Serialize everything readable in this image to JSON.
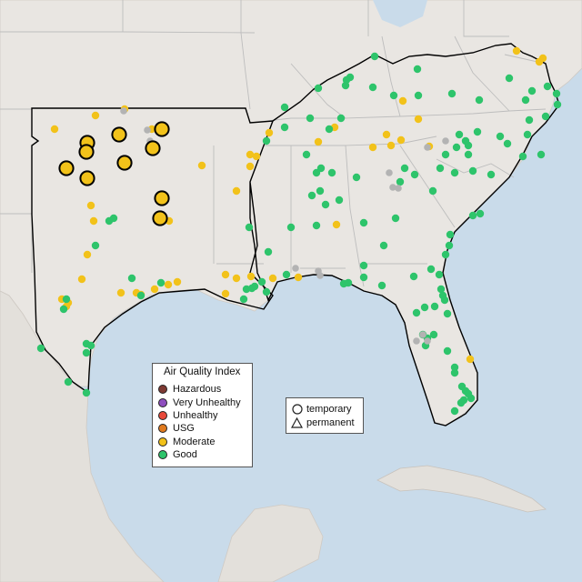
{
  "legend": {
    "title": "Air Quality Index",
    "items": [
      {
        "label": "Hazardous",
        "color": "#7e3a33"
      },
      {
        "label": "Very Unhealthy",
        "color": "#8f4fbf"
      },
      {
        "label": "Unhealthy",
        "color": "#e8493a"
      },
      {
        "label": "USG",
        "color": "#e07a1f"
      },
      {
        "label": "Moderate",
        "color": "#f2c21a"
      },
      {
        "label": "Good",
        "color": "#2ec46b"
      }
    ]
  },
  "shape_legend": {
    "items": [
      {
        "label": "temporary",
        "shape": "circle-icon"
      },
      {
        "label": "permanent",
        "shape": "triangle-icon"
      }
    ]
  },
  "colors": {
    "water": "#c9dbea",
    "land": "#e9e6e2",
    "boundary": "#b9b9b9",
    "region_outline": "#000000",
    "moderate": "#f2c21a",
    "good": "#2ec46b",
    "inactive": "#b3b3b3"
  }
}
